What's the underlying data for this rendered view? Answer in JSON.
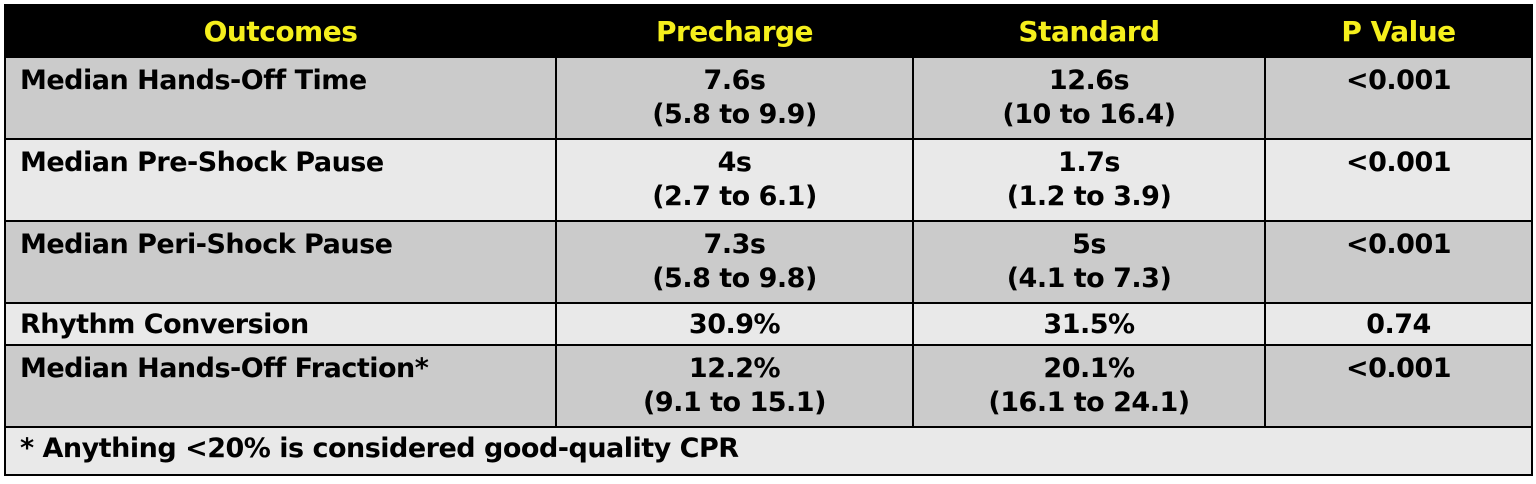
{
  "table": {
    "headers": [
      "Outcomes",
      "Precharge",
      "Standard",
      "P Value"
    ],
    "rows": [
      {
        "outcome": "Median Hands-Off Time",
        "precharge": [
          "7.6s",
          "(5.8 to 9.9)"
        ],
        "standard": [
          "12.6s",
          "(10 to 16.4)"
        ],
        "p_value": "<0.001"
      },
      {
        "outcome": "Median Pre-Shock Pause",
        "precharge": [
          "4s",
          "(2.7 to 6.1)"
        ],
        "standard": [
          "1.7s",
          "(1.2 to 3.9)"
        ],
        "p_value": "<0.001"
      },
      {
        "outcome": "Median Peri-Shock Pause",
        "precharge": [
          "7.3s",
          "(5.8 to 9.8)"
        ],
        "standard": [
          "5s",
          "(4.1 to 7.3)"
        ],
        "p_value": "<0.001"
      },
      {
        "outcome": "Rhythm Conversion",
        "precharge": [
          "30.9%"
        ],
        "standard": [
          "31.5%"
        ],
        "p_value": "0.74"
      },
      {
        "outcome": "Median Hands-Off Fraction*",
        "precharge": [
          "12.2%",
          "(9.1 to 15.1)"
        ],
        "standard": [
          "20.1%",
          "(16.1 to 24.1)"
        ],
        "p_value": "<0.001"
      }
    ],
    "footnote": "* Anything <20% is considered good-quality CPR"
  },
  "colors": {
    "header_bg": "#000000",
    "header_text": "#f5ef1c",
    "row_dark": "#cbcbcb",
    "row_light": "#e9e9e9"
  }
}
